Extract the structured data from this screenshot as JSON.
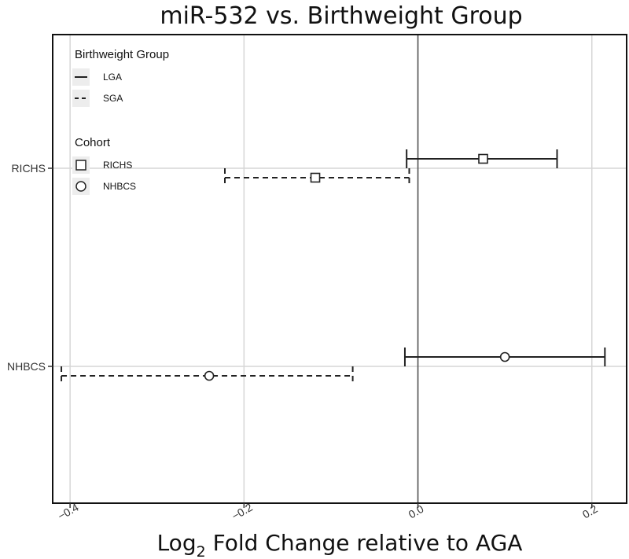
{
  "chart_data": {
    "type": "forest",
    "title": "miR-532 vs. Birthweight Group",
    "xlabel_prefix": "Log",
    "xlabel_sub": "2",
    "xlabel_suffix": " Fold Change relative to AGA",
    "xlim": [
      -0.42,
      0.24
    ],
    "x_ticks": [
      -0.4,
      -0.2,
      0.0,
      0.2
    ],
    "x_tick_labels": [
      "−0.4",
      "−0.2",
      "0.0",
      "0.2"
    ],
    "y_categories": [
      "RICHS",
      "NHBCS"
    ],
    "reference_line": 0.0,
    "grid": true,
    "legend_position": "top-left",
    "legend": {
      "linetype_title": "Birthweight Group",
      "linetype_entries": [
        {
          "label": "LGA",
          "style": "solid"
        },
        {
          "label": "SGA",
          "style": "dashed"
        }
      ],
      "shape_title": "Cohort",
      "shape_entries": [
        {
          "label": "RICHS",
          "shape": "square"
        },
        {
          "label": "NHBCS",
          "shape": "circle"
        }
      ]
    },
    "series": [
      {
        "cohort": "RICHS",
        "group": "LGA",
        "estimate": 0.075,
        "lower": -0.013,
        "upper": 0.16
      },
      {
        "cohort": "RICHS",
        "group": "SGA",
        "estimate": -0.118,
        "lower": -0.222,
        "upper": -0.01
      },
      {
        "cohort": "NHBCS",
        "group": "LGA",
        "estimate": 0.1,
        "lower": -0.015,
        "upper": 0.215
      },
      {
        "cohort": "NHBCS",
        "group": "SGA",
        "estimate": -0.24,
        "lower": -0.41,
        "upper": -0.075
      }
    ]
  }
}
